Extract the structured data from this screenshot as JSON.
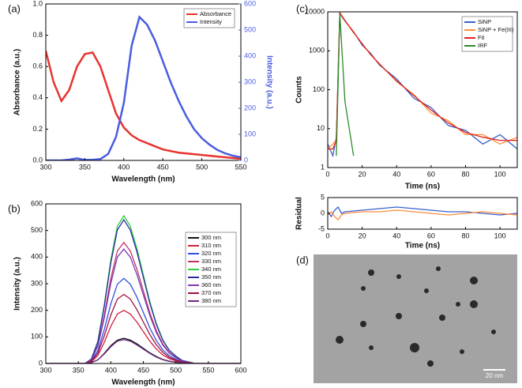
{
  "chart_data": [
    {
      "type": "line",
      "panel_label": "(a)",
      "xlabel": "Wavelength (nm)",
      "ylabel": "Absorbance (a.u.)",
      "y2label": "Intensity (a.u.)",
      "legend": "upper right",
      "xlim": [
        300,
        550
      ],
      "xticks": [
        300,
        350,
        400,
        450,
        500,
        550
      ],
      "ylim": [
        0,
        1.0
      ],
      "yticks": [
        {
          "value": 0,
          "label": "0.0"
        },
        {
          "value": 0.2,
          "label": "0.2"
        },
        {
          "value": 0.4,
          "label": "0.4"
        },
        {
          "value": 0.6,
          "label": "0.6"
        },
        {
          "value": 0.8,
          "label": "0.8"
        },
        {
          "value": 1.0,
          "label": "1.0"
        }
      ],
      "y2lim": [
        0,
        600
      ],
      "y2ticks": [
        0,
        100,
        200,
        300,
        400,
        500,
        600
      ],
      "x": [
        300,
        310,
        320,
        330,
        340,
        350,
        360,
        370,
        380,
        390,
        400,
        410,
        420,
        430,
        440,
        450,
        460,
        470,
        480,
        490,
        500,
        510,
        520,
        530,
        540,
        550
      ],
      "series": [
        {
          "name": "Absorbance",
          "color": "#e8332f",
          "values": [
            0.7,
            0.5,
            0.38,
            0.45,
            0.6,
            0.68,
            0.69,
            0.6,
            0.45,
            0.3,
            0.21,
            0.16,
            0.13,
            0.11,
            0.09,
            0.07,
            0.06,
            0.05,
            0.045,
            0.04,
            0.035,
            0.03,
            0.025,
            0.02,
            0.015,
            0.01
          ]
        },
        {
          "name": "Intensity",
          "color": "#4a5ce0",
          "axis": "y2",
          "values": [
            0,
            0,
            0,
            3,
            8,
            2,
            2,
            5,
            25,
            90,
            220,
            440,
            550,
            520,
            460,
            380,
            300,
            230,
            170,
            120,
            85,
            60,
            40,
            27,
            18,
            12
          ]
        }
      ]
    },
    {
      "type": "line",
      "panel_label": "(b)",
      "xlabel": "Wavelength (nm)",
      "ylabel": "Intensity (a.u.)",
      "legend": "center right",
      "xlim": [
        300,
        600
      ],
      "xticks": [
        300,
        350,
        400,
        450,
        500,
        550,
        600
      ],
      "ylim": [
        0,
        600
      ],
      "yticks": [
        0,
        100,
        200,
        300,
        400,
        500,
        600
      ],
      "x": [
        300,
        310,
        320,
        330,
        340,
        350,
        360,
        370,
        380,
        390,
        400,
        410,
        420,
        430,
        440,
        450,
        460,
        470,
        480,
        490,
        500,
        510,
        520,
        530,
        540,
        550,
        560,
        570,
        580,
        590,
        600
      ],
      "series": [
        {
          "name": "300 nm",
          "color": "#111111",
          "values": [
            0,
            0,
            0,
            0,
            0,
            0,
            0,
            3,
            14,
            38,
            67,
            88,
            95,
            88,
            74,
            57,
            40,
            26,
            15,
            9,
            5,
            2,
            1,
            0,
            0,
            0,
            0,
            0,
            0,
            0,
            0
          ]
        },
        {
          "name": "310 nm",
          "color": "#d21f3c",
          "values": [
            0,
            0,
            0,
            0,
            0,
            0,
            0,
            6,
            30,
            80,
            140,
            186,
            200,
            186,
            156,
            120,
            84,
            54,
            32,
            18,
            10,
            4,
            2,
            0,
            0,
            0,
            0,
            0,
            0,
            0,
            0
          ]
        },
        {
          "name": "320 nm",
          "color": "#3050e0",
          "values": [
            0,
            0,
            0,
            0,
            0,
            0,
            0,
            10,
            48,
            128,
            224,
            298,
            320,
            298,
            250,
            192,
            134,
            86,
            51,
            29,
            16,
            6,
            3,
            0,
            0,
            0,
            0,
            0,
            0,
            0,
            0
          ]
        },
        {
          "name": "330 nm",
          "color": "#c0306a",
          "values": [
            0,
            0,
            0,
            0,
            0,
            0,
            0,
            14,
            68,
            182,
            319,
            423,
            455,
            423,
            355,
            273,
            191,
            123,
            73,
            41,
            23,
            9,
            5,
            0,
            0,
            0,
            0,
            0,
            0,
            0,
            0
          ]
        },
        {
          "name": "340 nm",
          "color": "#2ecc40",
          "values": [
            0,
            0,
            0,
            0,
            0,
            0,
            0,
            17,
            83,
            222,
            389,
            516,
            555,
            516,
            433,
            333,
            233,
            150,
            89,
            50,
            28,
            11,
            6,
            0,
            0,
            0,
            0,
            0,
            0,
            0,
            0
          ]
        },
        {
          "name": "350 nm",
          "color": "#2a2aa0",
          "values": [
            0,
            0,
            0,
            0,
            0,
            0,
            0,
            16,
            81,
            216,
            378,
            502,
            540,
            502,
            421,
            324,
            227,
            146,
            86,
            49,
            27,
            11,
            5,
            0,
            0,
            0,
            0,
            0,
            0,
            0,
            0
          ]
        },
        {
          "name": "360 nm",
          "color": "#7a3ab0",
          "values": [
            0,
            0,
            0,
            0,
            0,
            0,
            0,
            13,
            65,
            172,
            301,
            400,
            430,
            400,
            335,
            258,
            181,
            116,
            69,
            39,
            22,
            9,
            4,
            0,
            0,
            0,
            0,
            0,
            0,
            0,
            0
          ]
        },
        {
          "name": "370 nm",
          "color": "#a01040",
          "values": [
            0,
            0,
            0,
            0,
            0,
            0,
            0,
            8,
            39,
            104,
            182,
            242,
            260,
            242,
            203,
            156,
            109,
            70,
            42,
            23,
            13,
            5,
            3,
            0,
            0,
            0,
            0,
            0,
            0,
            0,
            0
          ]
        },
        {
          "name": "380 nm",
          "color": "#6a2a80",
          "values": [
            0,
            0,
            0,
            0,
            0,
            0,
            0,
            3,
            14,
            36,
            63,
            84,
            90,
            84,
            70,
            54,
            38,
            24,
            14,
            8,
            5,
            2,
            1,
            0,
            0,
            0,
            0,
            0,
            0,
            0,
            0
          ]
        }
      ]
    },
    {
      "type": "line",
      "panel_label": "(c)",
      "xlabel": "Time (ns)",
      "ylabel": "Counts",
      "yscale": "log",
      "legend": "upper right",
      "xlim": [
        0,
        110
      ],
      "xticks": [
        0,
        20,
        40,
        60,
        80,
        100
      ],
      "ylim": [
        1,
        10000
      ],
      "yticks": [
        1,
        10,
        100,
        1000,
        10000
      ],
      "x": [
        0,
        3,
        5,
        7,
        10,
        15,
        20,
        25,
        30,
        40,
        50,
        60,
        70,
        80,
        90,
        100,
        110
      ],
      "series": [
        {
          "name": "SiNP",
          "color": "#3a5fcd",
          "values": [
            4,
            2,
            6,
            9000,
            5800,
            3100,
            1400,
            850,
            430,
            190,
            60,
            35,
            12,
            9,
            4,
            7,
            3
          ]
        },
        {
          "name": "SiNP + Fe(III)",
          "color": "#ff8c3a",
          "values": [
            3,
            4,
            5,
            9200,
            5900,
            2900,
            1550,
            780,
            470,
            160,
            75,
            25,
            16,
            7,
            7,
            4,
            6
          ]
        },
        {
          "name": "Fit",
          "color": "#e0201b",
          "values": [
            3,
            3,
            5,
            9500,
            6000,
            3000,
            1500,
            800,
            450,
            170,
            70,
            30,
            14,
            8,
            6,
            5,
            5
          ]
        },
        {
          "name": "IRF",
          "color": "#2a8a2a",
          "values": [
            null,
            null,
            2,
            9000,
            50,
            2,
            null,
            null,
            null,
            null,
            null,
            null,
            null,
            null,
            null,
            null,
            null
          ]
        }
      ]
    },
    {
      "type": "line",
      "xlabel": "Time (ns)",
      "ylabel": "Residual",
      "xlim": [
        0,
        110
      ],
      "xticks": [
        0,
        20,
        40,
        60,
        80,
        100
      ],
      "ylim": [
        -5,
        5
      ],
      "yticks": [
        -5,
        0,
        5
      ],
      "x": [
        0,
        2,
        4,
        6,
        8,
        10,
        20,
        30,
        40,
        50,
        60,
        70,
        80,
        90,
        100,
        110
      ],
      "series": [
        {
          "color": "#3a5fcd",
          "values": [
            0.5,
            -1,
            1,
            2,
            0,
            0.5,
            1,
            1.5,
            2,
            1.5,
            1,
            0.5,
            0.5,
            0,
            -0.5,
            0
          ]
        },
        {
          "color": "#ff8c3a",
          "values": [
            -0.5,
            0.5,
            -1,
            -2,
            -0.5,
            0,
            0.5,
            0.5,
            1,
            0.5,
            0,
            -0.5,
            0,
            0.5,
            0,
            -0.5
          ]
        }
      ]
    }
  ],
  "image": {
    "panel_label": "(d)",
    "scale_bar": "20 nm"
  }
}
